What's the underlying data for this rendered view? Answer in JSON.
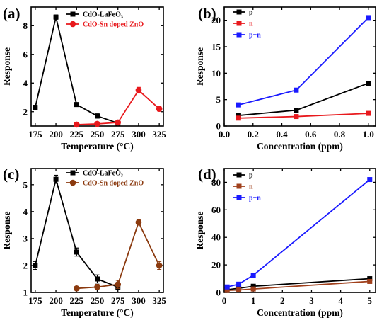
{
  "chart_data": [
    {
      "panel": "(a)",
      "type": "line",
      "xlabel": "Temperature (°C)",
      "ylabel": "Response",
      "xlim": [
        170,
        330
      ],
      "ylim": [
        1,
        9.3
      ],
      "xticks": [
        175,
        200,
        225,
        250,
        275,
        300,
        325
      ],
      "yticks": [
        2,
        4,
        6,
        8
      ],
      "legend_position": "top-center",
      "series": [
        {
          "name": "CdO-LaFeO₃",
          "color": "#000000",
          "marker": "square",
          "x": [
            175,
            200,
            225,
            250,
            275
          ],
          "y": [
            2.3,
            8.6,
            2.5,
            1.7,
            1.2
          ],
          "err": [
            0.15,
            0.15,
            0.1,
            0.15,
            0.1
          ]
        },
        {
          "name": "CdO-Sn doped ZnO",
          "color": "#e8191d",
          "marker": "circle",
          "x": [
            225,
            250,
            275,
            300,
            325
          ],
          "y": [
            1.1,
            1.15,
            1.25,
            3.5,
            2.2
          ],
          "err": [
            0.05,
            0.05,
            0.1,
            0.2,
            0.15
          ]
        }
      ]
    },
    {
      "panel": "(b)",
      "type": "line",
      "xlabel": "Concentration (ppm)",
      "ylabel": "Response",
      "xlim": [
        0,
        1.05
      ],
      "ylim": [
        0,
        22.5
      ],
      "xticks": [
        0.0,
        0.2,
        0.4,
        0.6,
        0.8,
        1.0
      ],
      "yticks": [
        0,
        5,
        10,
        15,
        20
      ],
      "legend_position": "top-left",
      "series": [
        {
          "name": "p",
          "color": "#000000",
          "marker": "square",
          "x": [
            0.1,
            0.5,
            1.0
          ],
          "y": [
            2.0,
            3.0,
            8.1
          ]
        },
        {
          "name": "n",
          "color": "#e8191d",
          "marker": "square",
          "x": [
            0.1,
            0.5,
            1.0
          ],
          "y": [
            1.5,
            1.8,
            2.4
          ]
        },
        {
          "name": "p+n",
          "color": "#1a1aff",
          "marker": "square",
          "x": [
            0.1,
            0.5,
            1.0
          ],
          "y": [
            4.0,
            6.8,
            20.5
          ]
        }
      ]
    },
    {
      "panel": "(c)",
      "type": "line",
      "xlabel": "Temperature (°C)",
      "ylabel": "Response",
      "xlim": [
        170,
        330
      ],
      "ylim": [
        1,
        5.6
      ],
      "xticks": [
        175,
        200,
        225,
        250,
        275,
        300,
        325
      ],
      "yticks": [
        1,
        2,
        3,
        4,
        5
      ],
      "legend_position": "top-right",
      "series": [
        {
          "name": "CdO-LaFeO₃",
          "color": "#000000",
          "marker": "square",
          "x": [
            175,
            200,
            225,
            250,
            275
          ],
          "y": [
            2.0,
            5.2,
            2.5,
            1.5,
            1.2
          ],
          "err": [
            0.15,
            0.15,
            0.15,
            0.15,
            0.1
          ]
        },
        {
          "name": "CdO-Sn doped ZnO",
          "color": "#8b3a0f",
          "marker": "circle",
          "x": [
            225,
            250,
            275,
            300,
            325
          ],
          "y": [
            1.15,
            1.2,
            1.3,
            3.6,
            2.0
          ],
          "err": [
            0.05,
            0.1,
            0.15,
            0.1,
            0.15
          ]
        }
      ]
    },
    {
      "panel": "(d)",
      "type": "line",
      "xlabel": "Concentration (ppm)",
      "ylabel": "Response",
      "xlim": [
        0,
        5.2
      ],
      "ylim": [
        0,
        90
      ],
      "xticks": [
        0,
        1,
        2,
        3,
        4,
        5
      ],
      "yticks": [
        0,
        20,
        40,
        60,
        80
      ],
      "legend_position": "top-left",
      "series": [
        {
          "name": "p",
          "color": "#000000",
          "marker": "square",
          "x": [
            0.1,
            0.5,
            1.0,
            5.0
          ],
          "y": [
            2.0,
            3.0,
            4.5,
            10.0
          ]
        },
        {
          "name": "n",
          "color": "#a0401c",
          "marker": "square",
          "x": [
            0.1,
            0.5,
            1.0,
            5.0
          ],
          "y": [
            1.5,
            1.8,
            2.5,
            8.0
          ]
        },
        {
          "name": "p+n",
          "color": "#1a1aff",
          "marker": "square",
          "x": [
            0.1,
            0.5,
            1.0,
            5.0
          ],
          "y": [
            4.0,
            6.0,
            12.5,
            82.0
          ]
        }
      ]
    }
  ]
}
